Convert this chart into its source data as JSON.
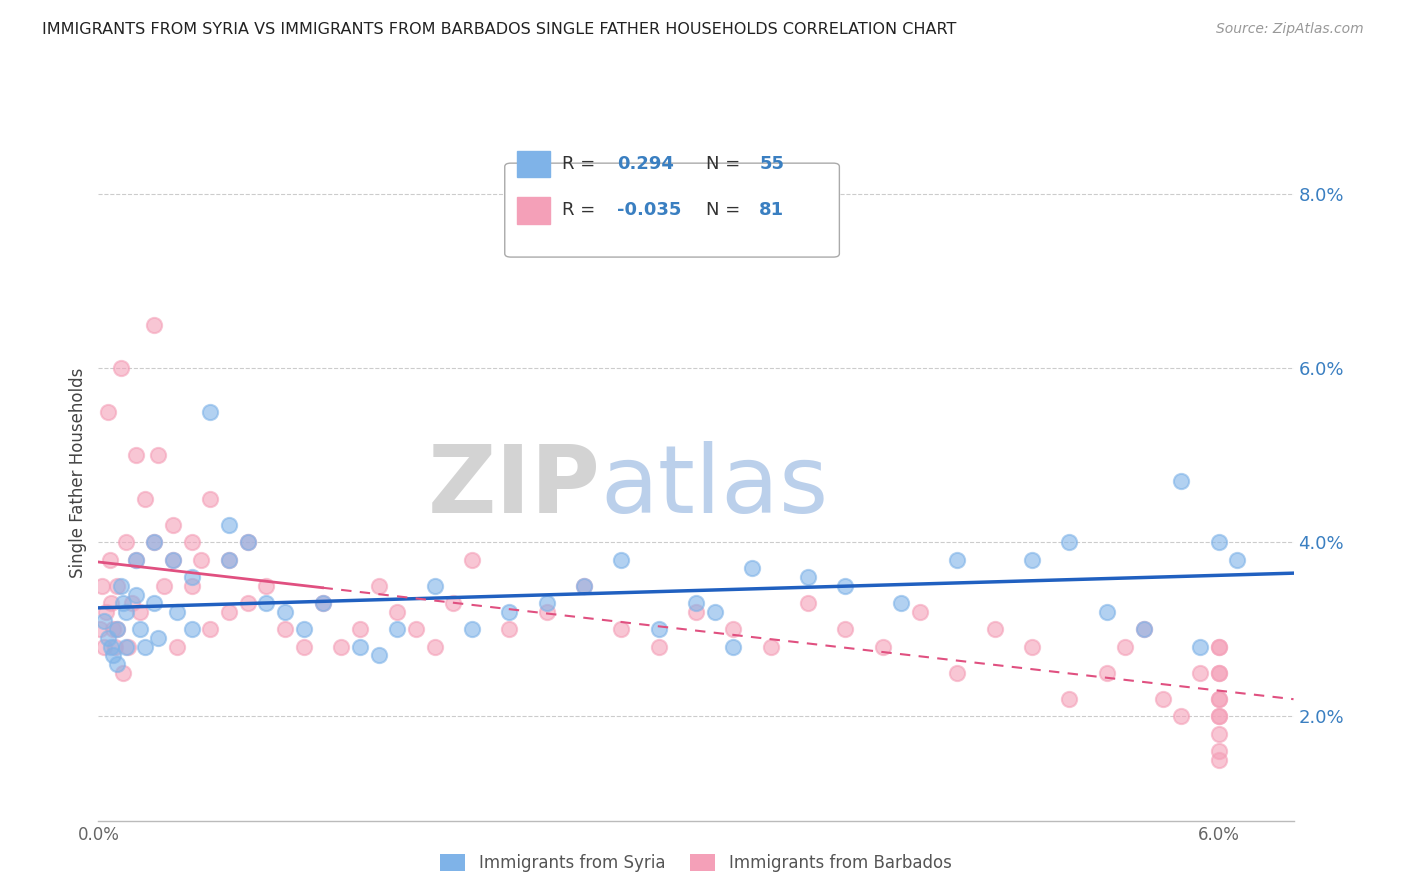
{
  "title": "IMMIGRANTS FROM SYRIA VS IMMIGRANTS FROM BARBADOS SINGLE FATHER HOUSEHOLDS CORRELATION CHART",
  "source": "Source: ZipAtlas.com",
  "ylabel": "Single Father Households",
  "xlim": [
    0.0,
    0.064
  ],
  "ylim": [
    0.008,
    0.088
  ],
  "yticks": [
    0.02,
    0.04,
    0.06,
    0.08
  ],
  "ytick_labels": [
    "2.0%",
    "4.0%",
    "6.0%",
    "8.0%"
  ],
  "color_syria": "#7fb3e8",
  "color_barbados": "#f4a0b8",
  "color_syria_line": "#2060c0",
  "color_barbados_line": "#e05080",
  "watermark_zip": "ZIP",
  "watermark_atlas": "atlas",
  "legend_label1": "Immigrants from Syria",
  "legend_label2": "Immigrants from Barbados",
  "syria_x": [
    0.0003,
    0.0005,
    0.0007,
    0.0008,
    0.001,
    0.001,
    0.0012,
    0.0013,
    0.0015,
    0.0015,
    0.002,
    0.002,
    0.0022,
    0.0025,
    0.003,
    0.003,
    0.0032,
    0.004,
    0.0042,
    0.005,
    0.005,
    0.006,
    0.007,
    0.007,
    0.008,
    0.009,
    0.01,
    0.011,
    0.012,
    0.014,
    0.015,
    0.016,
    0.018,
    0.02,
    0.022,
    0.024,
    0.026,
    0.028,
    0.03,
    0.032,
    0.033,
    0.034,
    0.035,
    0.038,
    0.04,
    0.043,
    0.046,
    0.05,
    0.052,
    0.054,
    0.056,
    0.058,
    0.059,
    0.06,
    0.061
  ],
  "syria_y": [
    0.031,
    0.029,
    0.028,
    0.027,
    0.03,
    0.026,
    0.035,
    0.033,
    0.032,
    0.028,
    0.038,
    0.034,
    0.03,
    0.028,
    0.04,
    0.033,
    0.029,
    0.038,
    0.032,
    0.03,
    0.036,
    0.055,
    0.042,
    0.038,
    0.04,
    0.033,
    0.032,
    0.03,
    0.033,
    0.028,
    0.027,
    0.03,
    0.035,
    0.03,
    0.032,
    0.033,
    0.035,
    0.038,
    0.03,
    0.033,
    0.032,
    0.028,
    0.037,
    0.036,
    0.035,
    0.033,
    0.038,
    0.038,
    0.04,
    0.032,
    0.03,
    0.047,
    0.028,
    0.04,
    0.038
  ],
  "barbados_x": [
    0.0001,
    0.0002,
    0.0003,
    0.0004,
    0.0005,
    0.0006,
    0.0007,
    0.0008,
    0.0009,
    0.001,
    0.001,
    0.0012,
    0.0013,
    0.0015,
    0.0016,
    0.0018,
    0.002,
    0.002,
    0.0022,
    0.0025,
    0.003,
    0.003,
    0.0032,
    0.0035,
    0.004,
    0.004,
    0.0042,
    0.005,
    0.005,
    0.0055,
    0.006,
    0.006,
    0.007,
    0.007,
    0.008,
    0.008,
    0.009,
    0.01,
    0.011,
    0.012,
    0.013,
    0.014,
    0.015,
    0.016,
    0.017,
    0.018,
    0.019,
    0.02,
    0.022,
    0.024,
    0.026,
    0.028,
    0.03,
    0.032,
    0.034,
    0.036,
    0.038,
    0.04,
    0.042,
    0.044,
    0.046,
    0.048,
    0.05,
    0.052,
    0.054,
    0.055,
    0.056,
    0.057,
    0.058,
    0.059,
    0.06,
    0.06,
    0.06,
    0.06,
    0.06,
    0.06,
    0.06,
    0.06,
    0.06,
    0.06,
    0.06
  ],
  "barbados_y": [
    0.03,
    0.035,
    0.028,
    0.032,
    0.055,
    0.038,
    0.033,
    0.03,
    0.028,
    0.035,
    0.03,
    0.06,
    0.025,
    0.04,
    0.028,
    0.033,
    0.05,
    0.038,
    0.032,
    0.045,
    0.065,
    0.04,
    0.05,
    0.035,
    0.038,
    0.042,
    0.028,
    0.04,
    0.035,
    0.038,
    0.045,
    0.03,
    0.038,
    0.032,
    0.04,
    0.033,
    0.035,
    0.03,
    0.028,
    0.033,
    0.028,
    0.03,
    0.035,
    0.032,
    0.03,
    0.028,
    0.033,
    0.038,
    0.03,
    0.032,
    0.035,
    0.03,
    0.028,
    0.032,
    0.03,
    0.028,
    0.033,
    0.03,
    0.028,
    0.032,
    0.025,
    0.03,
    0.028,
    0.022,
    0.025,
    0.028,
    0.03,
    0.022,
    0.02,
    0.025,
    0.028,
    0.02,
    0.025,
    0.018,
    0.022,
    0.016,
    0.02,
    0.028,
    0.015,
    0.022,
    0.025
  ]
}
